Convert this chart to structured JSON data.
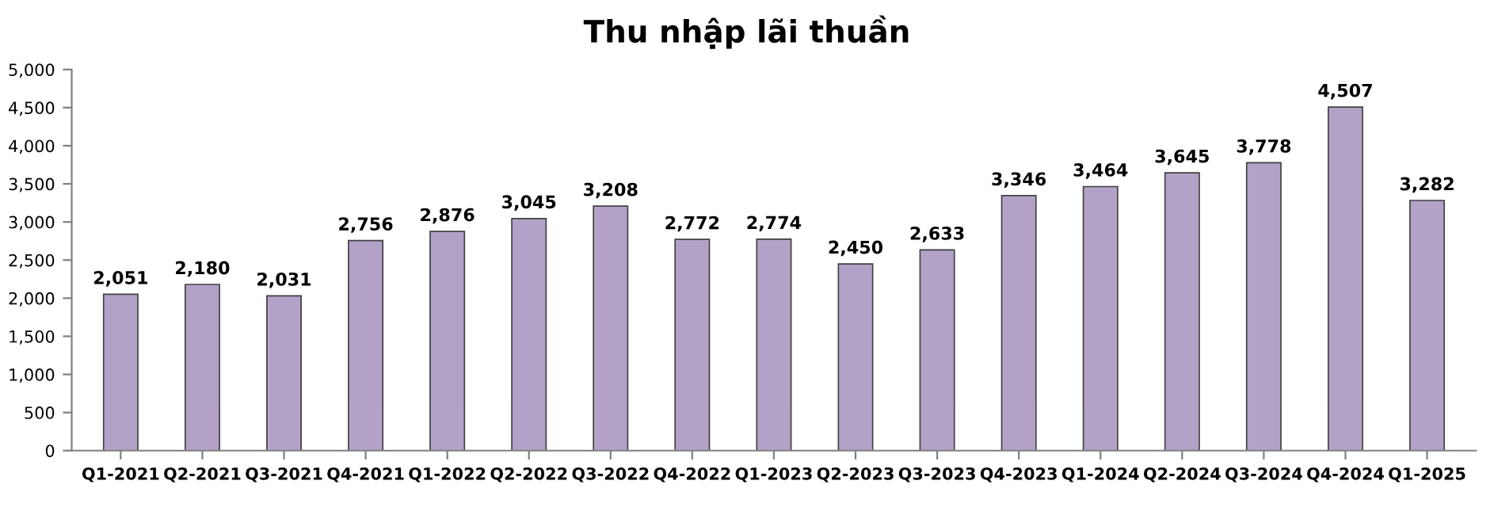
{
  "chart_data": {
    "type": "bar",
    "title": "Thu nhập lãi thuần",
    "categories": [
      "Q1-2021",
      "Q2-2021",
      "Q3-2021",
      "Q4-2021",
      "Q1-2022",
      "Q2-2022",
      "Q3-2022",
      "Q4-2022",
      "Q1-2023",
      "Q2-2023",
      "Q3-2023",
      "Q4-2023",
      "Q1-2024",
      "Q2-2024",
      "Q3-2024",
      "Q4-2024",
      "Q1-2025"
    ],
    "values": [
      2051,
      2180,
      2031,
      2756,
      2876,
      3045,
      3208,
      2772,
      2774,
      2450,
      2633,
      3346,
      3464,
      3645,
      3778,
      4507,
      3282
    ],
    "value_labels": [
      "2,051",
      "2,180",
      "2,031",
      "2,756",
      "2,876",
      "3,045",
      "3,208",
      "2,772",
      "2,774",
      "2,450",
      "2,633",
      "3,346",
      "3,464",
      "3,645",
      "3,778",
      "4,507",
      "3,282"
    ],
    "color": "#b3a2c7",
    "ylim": [
      0,
      5000
    ],
    "yticks": [
      0,
      500,
      {
        "value": 1000,
        "label": "1,000"
      },
      {
        "value": 1500,
        "label": "1,500"
      },
      {
        "value": 2000,
        "label": "2,000"
      },
      {
        "value": 2500,
        "label": "2,500"
      },
      {
        "value": 3000,
        "label": "3,000"
      },
      {
        "value": 3500,
        "label": "3,500"
      },
      {
        "value": 4000,
        "label": "4,000"
      },
      {
        "value": 4500,
        "label": "4,500"
      },
      {
        "value": 5000,
        "label": "5,000"
      }
    ],
    "grid": false
  }
}
